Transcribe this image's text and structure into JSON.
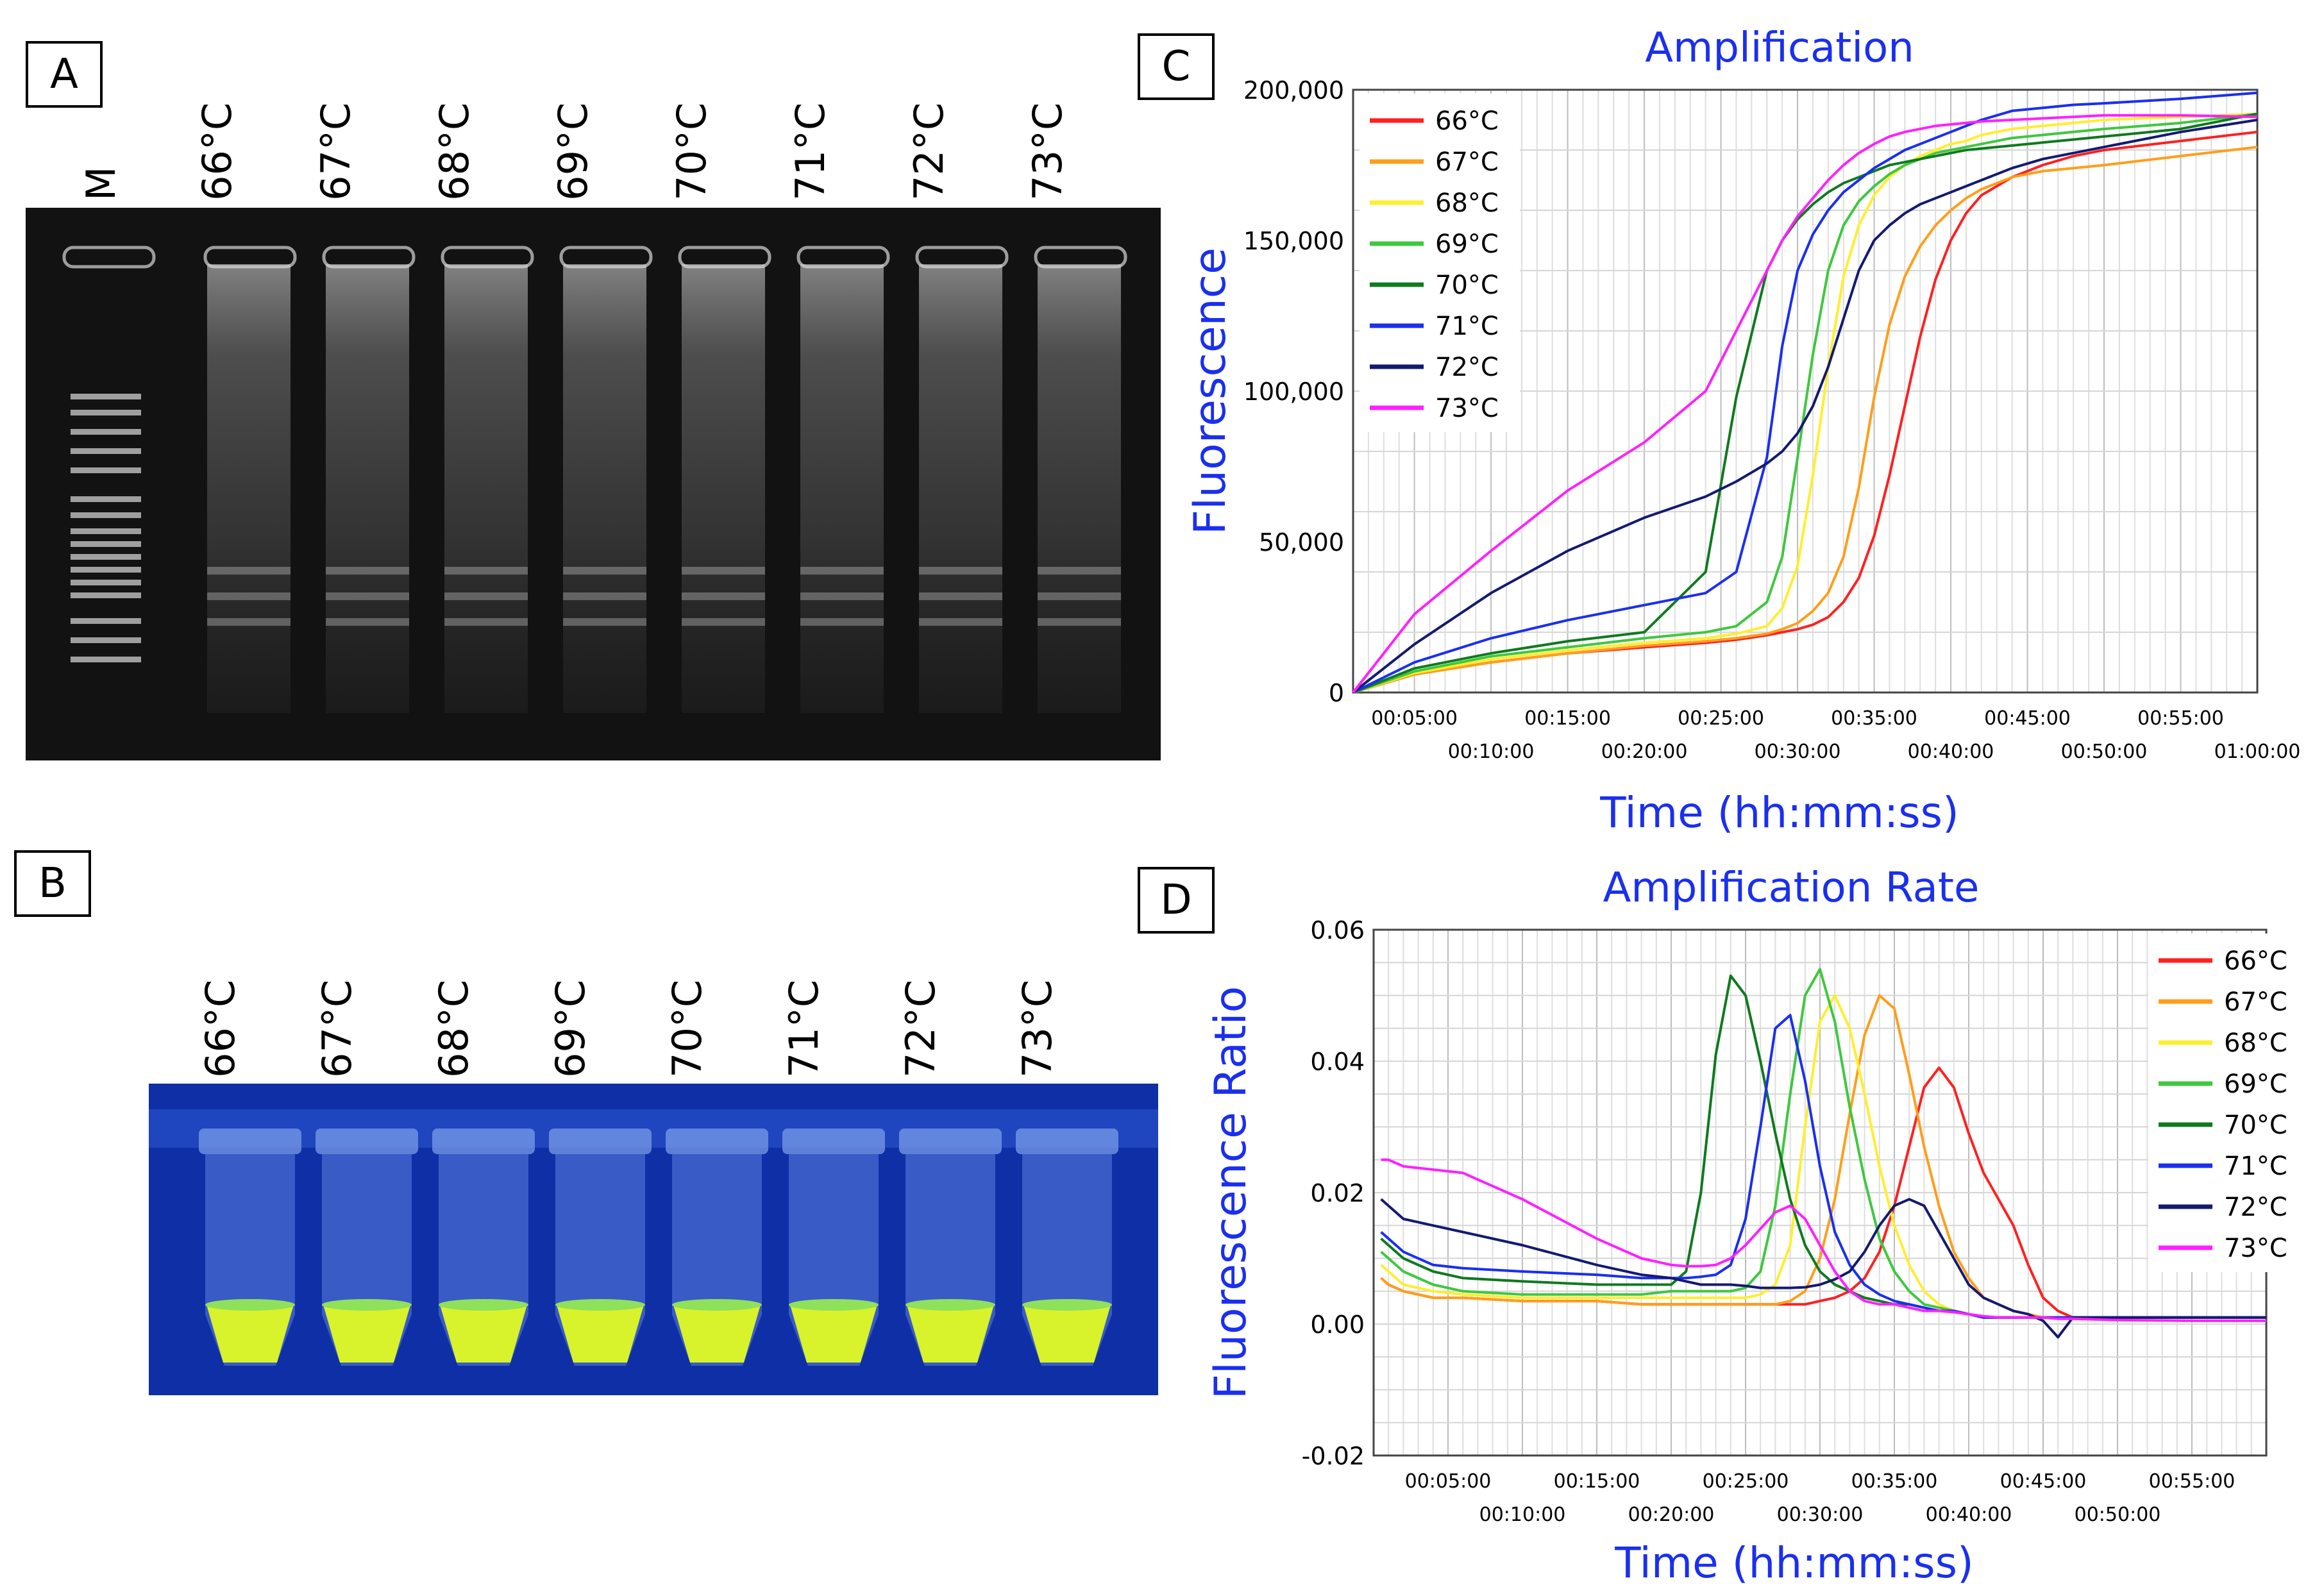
{
  "panels": {
    "a": "A",
    "b": "B",
    "c": "C",
    "d": "D"
  },
  "gel": {
    "marker_label": "M",
    "lanes": [
      "66°C",
      "67°C",
      "68°C",
      "69°C",
      "70°C",
      "71°C",
      "72°C",
      "73°C"
    ]
  },
  "tubes": {
    "lanes": [
      "66°C",
      "67°C",
      "68°C",
      "69°C",
      "70°C",
      "71°C",
      "72°C",
      "73°C"
    ]
  },
  "colors": {
    "66°C": "#ff2020",
    "67°C": "#ff9e1a",
    "68°C": "#ffee30",
    "69°C": "#3ec83e",
    "70°C": "#0f7a1e",
    "71°C": "#1a2ff0",
    "72°C": "#141a70",
    "73°C": "#ff20ff"
  },
  "chart_data": [
    {
      "type": "line",
      "title": "Amplification",
      "xlabel": "Time (hh:mm:ss)",
      "ylabel": "Fluorescence",
      "xlim": [
        1,
        60
      ],
      "ylim": [
        0,
        200000
      ],
      "yticks": [
        0,
        50000,
        100000,
        150000,
        200000
      ],
      "ytick_labels": [
        "0",
        "50,000",
        "100,000",
        "150,000",
        "200,000"
      ],
      "xticks_upper": [
        "00:05:00",
        "00:15:00",
        "00:25:00",
        "00:35:00",
        "00:45:00",
        "00:55:00"
      ],
      "xticks_lower": [
        "00:10:00",
        "00:20:00",
        "00:30:00",
        "00:40:00",
        "00:50:00",
        "01:00:00"
      ],
      "grid": true,
      "legend": "top-left",
      "x": [
        1,
        5,
        10,
        15,
        20,
        24,
        26,
        28,
        29,
        30,
        31,
        32,
        33,
        34,
        35,
        36,
        37,
        38,
        39,
        40,
        41,
        42,
        44,
        46,
        48,
        50,
        55,
        60
      ],
      "series": [
        {
          "name": "66°C",
          "values": [
            0,
            6000,
            10000,
            13000,
            15000,
            16500,
            17500,
            19000,
            20000,
            21000,
            22500,
            25000,
            30000,
            38000,
            52000,
            72000,
            95000,
            118000,
            137000,
            150000,
            159000,
            165000,
            171000,
            175000,
            178000,
            180000,
            183000,
            186000
          ]
        },
        {
          "name": "67°C",
          "values": [
            0,
            6000,
            10000,
            13000,
            15500,
            17000,
            18000,
            19500,
            21000,
            23000,
            27000,
            33000,
            45000,
            68000,
            98000,
            122000,
            138000,
            148000,
            155000,
            160000,
            164000,
            167000,
            171000,
            173000,
            174000,
            175000,
            178000,
            181000
          ]
        },
        {
          "name": "68°C",
          "values": [
            0,
            6500,
            11000,
            14000,
            16500,
            18000,
            19500,
            22000,
            28000,
            42000,
            72000,
            108000,
            138000,
            155000,
            165000,
            171000,
            175000,
            178000,
            180000,
            182000,
            183000,
            185000,
            187000,
            188000,
            189000,
            190000,
            191000,
            192000
          ]
        },
        {
          "name": "69°C",
          "values": [
            0,
            7000,
            12000,
            15000,
            18000,
            20000,
            22000,
            30000,
            45000,
            78000,
            112000,
            140000,
            155000,
            163000,
            168000,
            172000,
            175000,
            177000,
            179000,
            180000,
            181000,
            182000,
            184000,
            185000,
            186000,
            187000,
            189000,
            192000
          ]
        },
        {
          "name": "70°C",
          "values": [
            0,
            8000,
            13000,
            17000,
            20000,
            40000,
            98000,
            140000,
            150000,
            157000,
            162000,
            166000,
            169000,
            171000,
            173000,
            175000,
            176000,
            177000,
            178000,
            179000,
            180000,
            180500,
            181500,
            182500,
            183500,
            184500,
            187000,
            192000
          ]
        },
        {
          "name": "71°C",
          "values": [
            0,
            10000,
            18000,
            24000,
            29000,
            33000,
            40000,
            78000,
            115000,
            140000,
            152000,
            160000,
            166000,
            170000,
            174000,
            177000,
            180000,
            182000,
            184000,
            186000,
            188000,
            190000,
            193000,
            194000,
            195000,
            195500,
            197000,
            199000
          ]
        },
        {
          "name": "72°C",
          "values": [
            0,
            16000,
            33000,
            47000,
            58000,
            65000,
            70000,
            76000,
            80000,
            86000,
            95000,
            108000,
            124000,
            140000,
            150000,
            155000,
            159000,
            162000,
            164000,
            166000,
            168000,
            170000,
            174000,
            177000,
            179000,
            181000,
            186000,
            190000
          ]
        },
        {
          "name": "73°C",
          "values": [
            0,
            26000,
            47000,
            67000,
            83000,
            100000,
            120000,
            140000,
            150000,
            158000,
            164000,
            170000,
            175000,
            179000,
            182000,
            184500,
            186000,
            187000,
            188000,
            188500,
            189000,
            189500,
            190000,
            190500,
            191000,
            191500,
            191500,
            191000
          ]
        }
      ]
    },
    {
      "type": "line",
      "title": "Amplification Rate",
      "xlabel": "Time (hh:mm:ss)",
      "ylabel": "Fluorescence Ratio",
      "xlim": [
        0,
        60
      ],
      "ylim": [
        -0.02,
        0.06
      ],
      "yticks": [
        -0.02,
        0,
        0.02,
        0.04,
        0.06
      ],
      "ytick_labels": [
        "-0.02",
        "0.00",
        "0.02",
        "0.04",
        "0.06"
      ],
      "xticks_upper": [
        "00:05:00",
        "00:15:00",
        "00:25:00",
        "00:35:00",
        "00:45:00",
        "00:55:00"
      ],
      "xticks_lower": [
        "00:10:00",
        "00:20:00",
        "00:30:00",
        "00:40:00",
        "00:50:00"
      ],
      "grid": true,
      "legend": "top-right",
      "x": [
        0.5,
        1,
        2,
        4,
        6,
        10,
        15,
        18,
        20,
        21,
        22,
        23,
        24,
        25,
        26,
        27,
        28,
        29,
        30,
        31,
        32,
        33,
        34,
        35,
        36,
        37,
        38,
        39,
        40,
        41,
        42,
        43,
        44,
        45,
        46,
        47,
        50,
        55,
        60
      ],
      "series": [
        {
          "name": "66°C",
          "values": [
            0.007,
            0.006,
            0.005,
            0.004,
            0.004,
            0.0035,
            0.0035,
            0.003,
            0.003,
            0.003,
            0.003,
            0.003,
            0.003,
            0.003,
            0.003,
            0.003,
            0.003,
            0.003,
            0.0035,
            0.004,
            0.005,
            0.007,
            0.011,
            0.018,
            0.027,
            0.036,
            0.039,
            0.036,
            0.029,
            0.023,
            0.019,
            0.015,
            0.009,
            0.004,
            0.002,
            0.001,
            0.001,
            0.001,
            0.001
          ]
        },
        {
          "name": "67°C",
          "values": [
            0.007,
            0.006,
            0.005,
            0.004,
            0.004,
            0.0035,
            0.0035,
            0.003,
            0.003,
            0.003,
            0.003,
            0.003,
            0.003,
            0.003,
            0.003,
            0.003,
            0.0035,
            0.005,
            0.01,
            0.019,
            0.032,
            0.044,
            0.05,
            0.048,
            0.038,
            0.027,
            0.018,
            0.011,
            0.007,
            0.004,
            0.003,
            0.002,
            0.0015,
            0.001,
            0.001,
            0.001,
            0.001,
            0.001,
            0.001
          ]
        },
        {
          "name": "68°C",
          "values": [
            0.009,
            0.008,
            0.006,
            0.005,
            0.0045,
            0.004,
            0.004,
            0.004,
            0.004,
            0.004,
            0.004,
            0.004,
            0.004,
            0.004,
            0.0045,
            0.006,
            0.012,
            0.03,
            0.046,
            0.05,
            0.045,
            0.035,
            0.024,
            0.015,
            0.009,
            0.005,
            0.003,
            0.002,
            0.0015,
            0.001,
            0.001,
            0.001,
            0.001,
            0.001,
            0.001,
            0.001,
            0.001,
            0.001,
            0.001
          ]
        },
        {
          "name": "69°C",
          "values": [
            0.011,
            0.01,
            0.008,
            0.006,
            0.005,
            0.0045,
            0.0045,
            0.0045,
            0.005,
            0.005,
            0.005,
            0.005,
            0.005,
            0.0055,
            0.008,
            0.018,
            0.035,
            0.05,
            0.054,
            0.046,
            0.033,
            0.022,
            0.013,
            0.008,
            0.005,
            0.003,
            0.0025,
            0.002,
            0.0015,
            0.001,
            0.001,
            0.001,
            0.001,
            0.001,
            0.001,
            0.001,
            0.001,
            0.001,
            0.001
          ]
        },
        {
          "name": "70°C",
          "values": [
            0.013,
            0.012,
            0.01,
            0.008,
            0.007,
            0.0065,
            0.006,
            0.006,
            0.006,
            0.008,
            0.02,
            0.041,
            0.053,
            0.05,
            0.04,
            0.029,
            0.019,
            0.012,
            0.008,
            0.006,
            0.005,
            0.004,
            0.0035,
            0.003,
            0.003,
            0.0025,
            0.002,
            0.002,
            0.0015,
            0.001,
            0.001,
            0.001,
            0.001,
            0.001,
            0.001,
            0.001,
            0.001,
            0.001,
            0.001
          ]
        },
        {
          "name": "71°C",
          "values": [
            0.014,
            0.013,
            0.011,
            0.009,
            0.0085,
            0.008,
            0.0075,
            0.007,
            0.007,
            0.007,
            0.0072,
            0.0075,
            0.009,
            0.016,
            0.03,
            0.045,
            0.047,
            0.037,
            0.024,
            0.014,
            0.009,
            0.006,
            0.0045,
            0.0035,
            0.003,
            0.0025,
            0.002,
            0.002,
            0.0015,
            0.001,
            0.001,
            0.001,
            0.001,
            0.001,
            0.001,
            0.001,
            0.001,
            0.001,
            0.001
          ]
        },
        {
          "name": "72°C",
          "values": [
            0.019,
            0.018,
            0.016,
            0.015,
            0.014,
            0.012,
            0.009,
            0.0075,
            0.007,
            0.0065,
            0.006,
            0.006,
            0.006,
            0.0058,
            0.0055,
            0.0055,
            0.0055,
            0.0056,
            0.006,
            0.0068,
            0.008,
            0.011,
            0.015,
            0.018,
            0.019,
            0.018,
            0.014,
            0.01,
            0.006,
            0.004,
            0.003,
            0.002,
            0.0015,
            0.0005,
            -0.002,
            0.001,
            0.001,
            0.001,
            0.001
          ]
        },
        {
          "name": "73°C",
          "values": [
            0.025,
            0.025,
            0.024,
            0.0235,
            0.023,
            0.019,
            0.013,
            0.01,
            0.009,
            0.0088,
            0.0088,
            0.009,
            0.01,
            0.012,
            0.0145,
            0.017,
            0.018,
            0.016,
            0.012,
            0.008,
            0.005,
            0.0035,
            0.003,
            0.003,
            0.0025,
            0.002,
            0.002,
            0.0018,
            0.0015,
            0.0012,
            0.001,
            0.001,
            0.001,
            0.001,
            0.0008,
            0.0008,
            0.0006,
            0.0005,
            0.0005
          ]
        }
      ]
    }
  ]
}
